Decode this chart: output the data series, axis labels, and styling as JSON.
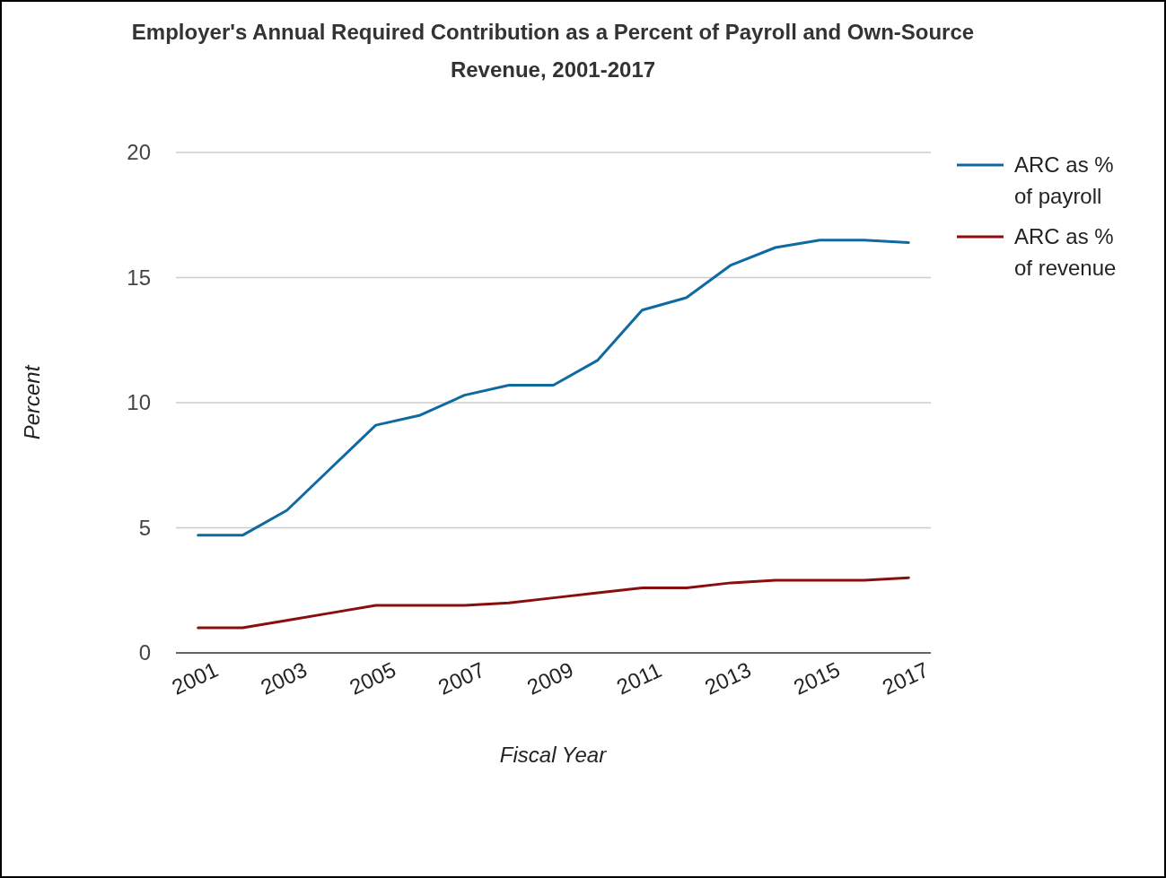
{
  "chart_data": {
    "type": "line",
    "title": "Employer's Annual Required Contribution as a Percent of Payroll and Own-Source Revenue, 2001-2017",
    "xlabel": "Fiscal Year",
    "ylabel": "Percent",
    "x": [
      2001,
      2002,
      2003,
      2004,
      2005,
      2006,
      2007,
      2008,
      2009,
      2010,
      2011,
      2012,
      2013,
      2014,
      2015,
      2016,
      2017
    ],
    "series": [
      {
        "name": "ARC as % of payroll",
        "color": "#0e6aa0",
        "values": [
          4.7,
          4.7,
          5.7,
          7.4,
          9.1,
          9.5,
          10.3,
          10.7,
          10.7,
          11.7,
          13.7,
          14.2,
          15.5,
          16.2,
          16.5,
          16.5,
          16.4
        ]
      },
      {
        "name": "ARC as % of revenue",
        "color": "#8b0e0e",
        "values": [
          1.0,
          1.0,
          1.3,
          1.6,
          1.9,
          1.9,
          1.9,
          2.0,
          2.2,
          2.4,
          2.6,
          2.6,
          2.8,
          2.9,
          2.9,
          2.9,
          3.0
        ]
      }
    ],
    "xlim": [
      2000.5,
      2017.5
    ],
    "xticks": [
      2001,
      2003,
      2005,
      2007,
      2009,
      2011,
      2013,
      2015,
      2017
    ],
    "ylim": [
      0,
      20
    ],
    "yticks": [
      0,
      5,
      10,
      15,
      20
    ],
    "grid": "y",
    "legend": "top right",
    "marker": "none",
    "line_style": "solid"
  }
}
